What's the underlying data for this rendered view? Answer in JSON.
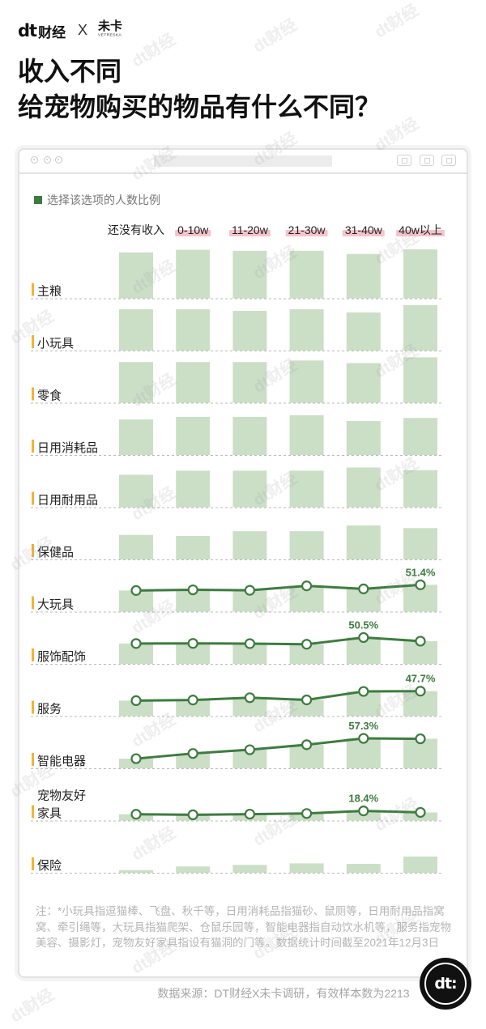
{
  "brand": {
    "left_mark": "dt",
    "left_text": "财经",
    "separator": "X",
    "partner": "未卡",
    "partner_sub": "VETRESKA"
  },
  "header": {
    "title_line1": "收入不同",
    "title_line2": "给宠物购买的物品有什么不同？"
  },
  "colors": {
    "bar": "#cadfc6",
    "line": "#3e7b40",
    "label_marker": "#f0b43a",
    "header_highlight": "#f6c3cb"
  },
  "icons": [
    "close-window-icon",
    "minimize-window-icon",
    "maximize-window-icon",
    "profile-icon",
    "share-icon",
    "window-icon"
  ],
  "chart_data": {
    "type": "bar",
    "legend": "选择该选项的人数比例",
    "categories": [
      "还没有收入",
      "0-10w",
      "11-20w",
      "21-30w",
      "31-40w",
      "40w以上"
    ],
    "ylim": [
      0,
      100
    ],
    "series": [
      {
        "name": "主粮",
        "values": [
          88,
          93,
          91,
          91,
          85,
          94
        ]
      },
      {
        "name": "小玩具",
        "values": [
          79,
          79,
          76,
          79,
          73,
          87
        ]
      },
      {
        "name": "零食",
        "values": [
          78,
          78,
          78,
          81,
          76,
          87
        ]
      },
      {
        "name": "日用消耗品",
        "values": [
          68,
          73,
          73,
          76,
          65,
          71
        ]
      },
      {
        "name": "日用耐用品",
        "values": [
          62,
          70,
          70,
          70,
          76,
          71
        ]
      },
      {
        "name": "保健品",
        "values": [
          47,
          45,
          54,
          54,
          65,
          60
        ]
      },
      {
        "name": "大玩具",
        "values": [
          40.5,
          41.8,
          40.9,
          49.4,
          43.6,
          51.4
        ],
        "overlay": "line",
        "data_labels": [
          null,
          null,
          null,
          null,
          null,
          "51.4%"
        ]
      },
      {
        "name": "服饰配饰",
        "values": [
          39.0,
          39.2,
          38.8,
          37.6,
          50.5,
          43.5
        ],
        "overlay": "line",
        "data_labels": [
          null,
          null,
          null,
          null,
          "50.5%",
          null
        ]
      },
      {
        "name": "服务",
        "values": [
          29.6,
          30.8,
          35.2,
          31.0,
          47.2,
          47.7
        ],
        "overlay": "line",
        "data_labels": [
          null,
          null,
          null,
          null,
          null,
          "47.7%"
        ]
      },
      {
        "name": "智能电器",
        "values": [
          18.5,
          28.4,
          35.6,
          45.2,
          57.3,
          56.5
        ],
        "overlay": "line",
        "data_labels": [
          null,
          null,
          null,
          null,
          "57.3%",
          null
        ]
      },
      {
        "name": "宠物友好家具",
        "values": [
          12.0,
          11.0,
          12.3,
          13.5,
          18.4,
          15.6
        ],
        "overlay": "line",
        "data_labels": [
          null,
          null,
          null,
          null,
          "18.4%",
          null
        ]
      },
      {
        "name": "保险",
        "values": [
          5,
          12,
          15,
          18,
          17,
          31
        ]
      }
    ]
  },
  "footnote": "注：*小玩具指逗猫棒、飞盘、秋千等，日用消耗品指猫砂、鼠厕等，日用耐用品指窝窝、牵引绳等，大玩具指猫爬架、仓鼠乐园等，智能电器指自动饮水机等，服务指宠物美容、摄影灯，宠物友好家具指设有猫洞的门等。数据统计时间截至2021年12月3日",
  "source": "数据来源：DT财经X未卡调研，有效样本数为2213",
  "badge": "dt:",
  "watermark": "dt财经"
}
